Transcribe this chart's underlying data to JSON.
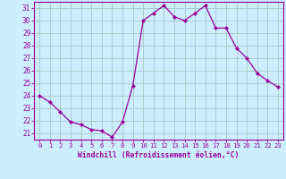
{
  "x": [
    0,
    1,
    2,
    3,
    4,
    5,
    6,
    7,
    8,
    9,
    10,
    11,
    12,
    13,
    14,
    15,
    16,
    17,
    18,
    19,
    20,
    21,
    22,
    23
  ],
  "y": [
    24.0,
    23.5,
    22.7,
    21.9,
    21.7,
    21.3,
    21.2,
    20.7,
    21.9,
    24.8,
    30.0,
    30.6,
    31.2,
    30.3,
    30.0,
    30.6,
    31.2,
    29.4,
    29.4,
    27.8,
    27.0,
    25.8,
    25.2,
    24.7
  ],
  "line_color": "#990099",
  "marker": "D",
  "marker_size": 2.0,
  "bg_color": "#cceeff",
  "grid_color": "#aacccc",
  "tick_color": "#990099",
  "label_color": "#990099",
  "xlabel": "Windchill (Refroidissement éolien,°C)",
  "ylim": [
    20.5,
    31.5
  ],
  "xlim": [
    -0.5,
    23.5
  ],
  "yticks": [
    21,
    22,
    23,
    24,
    25,
    26,
    27,
    28,
    29,
    30,
    31
  ],
  "xticks": [
    0,
    1,
    2,
    3,
    4,
    5,
    6,
    7,
    8,
    9,
    10,
    11,
    12,
    13,
    14,
    15,
    16,
    17,
    18,
    19,
    20,
    21,
    22,
    23
  ]
}
